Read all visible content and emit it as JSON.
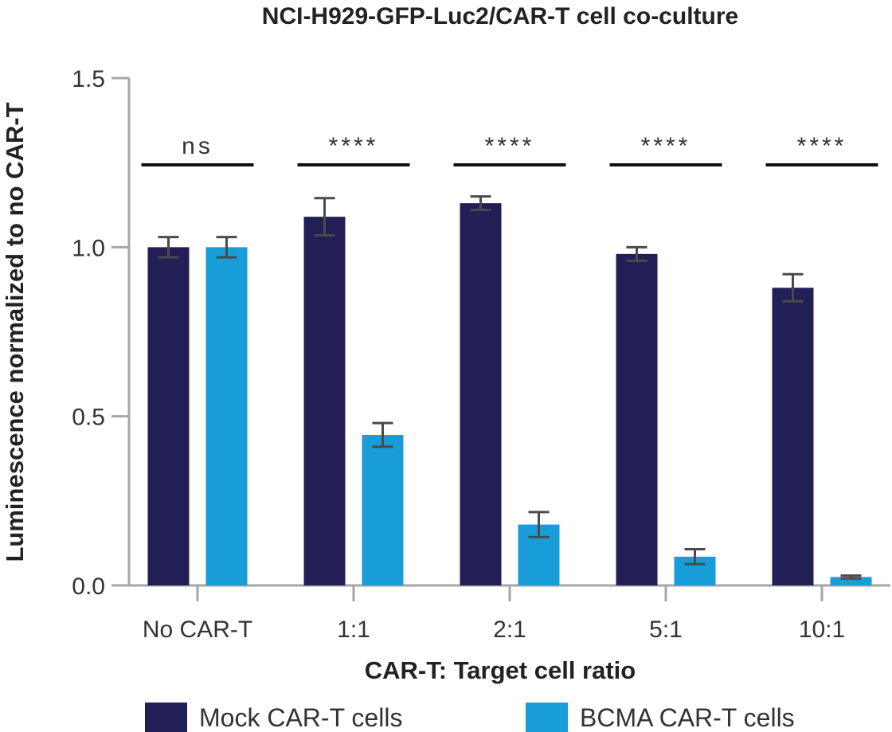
{
  "chart_data": {
    "type": "bar",
    "title": "NCI-H929-GFP-Luc2/CAR-T cell co-culture",
    "xlabel": "CAR-T: Target cell ratio",
    "ylabel": "Luminescence normalized to no CAR-T",
    "categories": [
      "No CAR-T",
      "1:1",
      "2:1",
      "5:1",
      "10:1"
    ],
    "ylim": [
      0,
      1.5
    ],
    "yticks": [
      "0.0",
      "0.5",
      "1.0",
      "1.5"
    ],
    "ytick_values": [
      0,
      0.5,
      1.0,
      1.5
    ],
    "grid": false,
    "legend_position": "bottom",
    "series": [
      {
        "name": "Mock CAR-T cells",
        "color": "#221f56",
        "values": [
          1.0,
          1.09,
          1.13,
          0.98,
          0.88
        ],
        "errors": [
          0.03,
          0.055,
          0.02,
          0.02,
          0.04
        ]
      },
      {
        "name": "BCMA CAR-T cells",
        "color": "#189dd8",
        "values": [
          1.0,
          0.445,
          0.18,
          0.085,
          0.025
        ],
        "errors": [
          0.03,
          0.035,
          0.037,
          0.022,
          0.004
        ]
      }
    ],
    "significance": [
      "ns",
      "****",
      "****",
      "****",
      "****"
    ]
  }
}
